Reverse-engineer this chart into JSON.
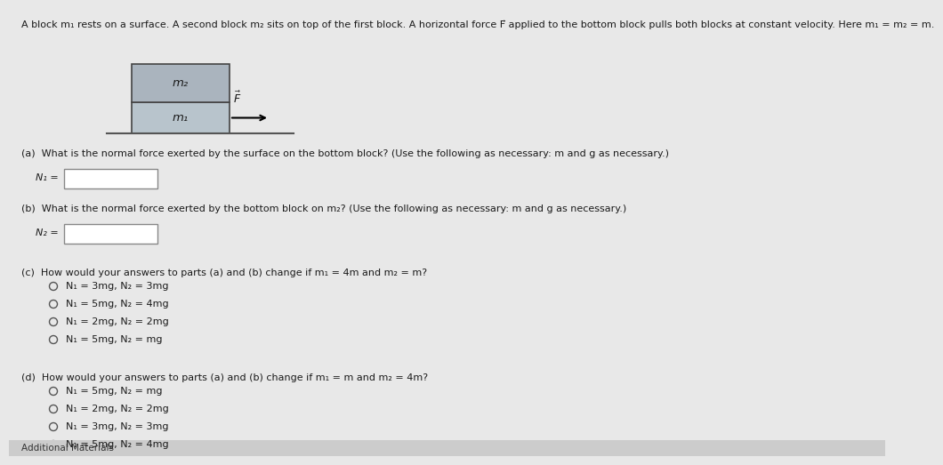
{
  "page_bg": "#e8e8e8",
  "title_text": "A block m₁ rests on a surface. A second block m₂ sits on top of the first block. A horizontal force F⃗ applied to the bottom block pulls both blocks at constant velocity. Here m₁ = m₂ = m.",
  "part_a_question": "(a)  What is the normal force exerted by the surface on the bottom block? (Use the following as necessary: m and g as necessary.)",
  "part_a_label": "N₁ =",
  "part_b_question": "(b)  What is the normal force exerted by the bottom block on m₂? (Use the following as necessary: m and g as necessary.)",
  "part_b_label": "N₂ =",
  "part_c_question": "(c)  How would your answers to parts (a) and (b) change if m₁ = 4m and m₂ = m?",
  "part_c_options": [
    "N₁ = 3mg, N₂ = 3mg",
    "N₁ = 5mg, N₂ = 4mg",
    "N₁ = 2mg, N₂ = 2mg",
    "N₁ = 5mg, N₂ = mg"
  ],
  "part_d_question": "(d)  How would your answers to parts (a) and (b) change if m₁ = m and m₂ = 4m?",
  "part_d_options": [
    "N₁ = 5mg, N₂ = mg",
    "N₁ = 2mg, N₂ = 2mg",
    "N₁ = 3mg, N₂ = 3mg",
    "N₁ = 5mg, N₂ = 4mg"
  ],
  "block_m2_color": "#aab4be",
  "block_m1_color": "#b8c4cc",
  "block_m2_label": "m₂",
  "block_m1_label": "m₁",
  "text_color": "#1a1a1a",
  "q_fontsize": 8.0,
  "opt_fontsize": 8.0,
  "title_fontsize": 8.0,
  "additional_text": "Additional Materials"
}
